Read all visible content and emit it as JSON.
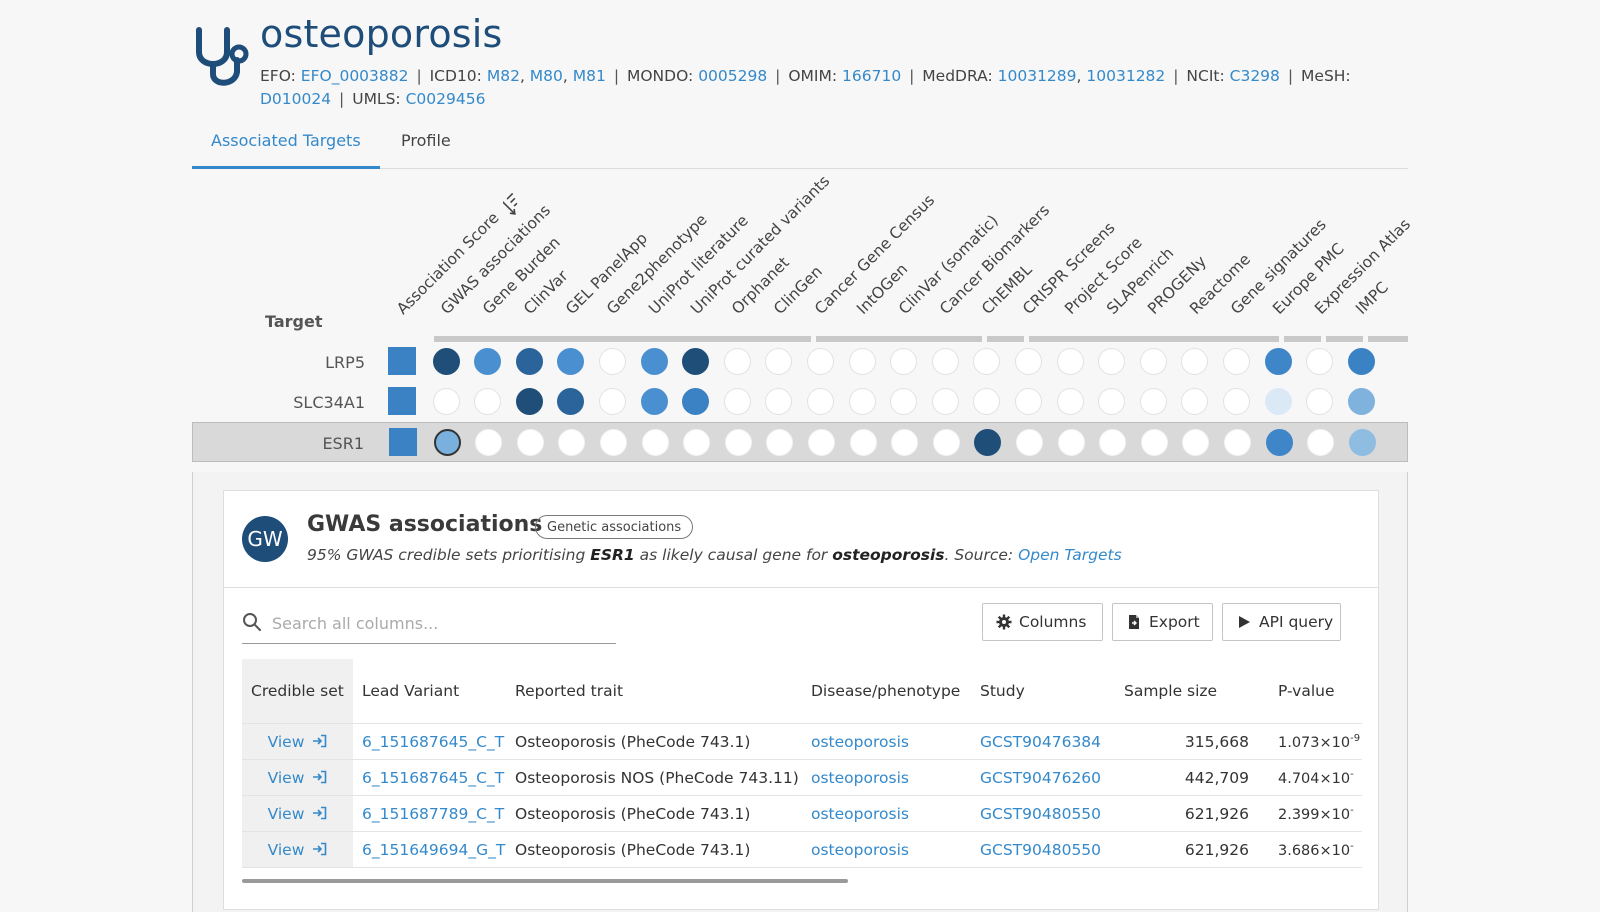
{
  "disease": {
    "title": "osteoporosis",
    "xrefs": [
      {
        "label": "EFO:",
        "ids": [
          "EFO_0003882"
        ]
      },
      {
        "label": "ICD10:",
        "ids": [
          "M82",
          "M80",
          "M81"
        ]
      },
      {
        "label": "MONDO:",
        "ids": [
          "0005298"
        ]
      },
      {
        "label": "OMIM:",
        "ids": [
          "166710"
        ]
      },
      {
        "label": "MedDRA:",
        "ids": [
          "10031289",
          "10031282"
        ]
      },
      {
        "label": "NCIt:",
        "ids": [
          "C3298"
        ]
      },
      {
        "label": "MeSH:",
        "ids": [
          "D010024"
        ]
      },
      {
        "label": "UMLS:",
        "ids": [
          "C0029456"
        ]
      }
    ],
    "icon": "stethoscope-icon"
  },
  "tabs": [
    {
      "label": "Associated Targets",
      "active": true
    },
    {
      "label": "Profile",
      "active": false
    }
  ],
  "matrix": {
    "target_heading": "Target",
    "sorted_column_icon": "sort-descending-icon",
    "columns": [
      "Association Score",
      "GWAS associations",
      "Gene Burden",
      "ClinVar",
      "GEL PanelApp",
      "Gene2phenotype",
      "UniProt literature",
      "UniProt curated variants",
      "Orphanet",
      "ClinGen",
      "Cancer Gene Census",
      "IntOGen",
      "ClinVar (somatic)",
      "Cancer Biomarkers",
      "ChEMBL",
      "CRISPR Screens",
      "Project Score",
      "SLAPenrich",
      "PROGENy",
      "Reactome",
      "Gene signatures",
      "Europe PMC",
      "Expression Atlas",
      "IMPC"
    ],
    "rows": [
      {
        "target": "LRP5",
        "score_color": "#3a82c4",
        "cells": [
          "#1f4e79",
          "#4a90d0",
          "#2a649a",
          "#4a90d0",
          "",
          "#4a90d0",
          "#1f4e79",
          "",
          "",
          "",
          "",
          "",
          "",
          "",
          "",
          "",
          "",
          "",
          "",
          "",
          "#3f86c8",
          "",
          "#3a82c4"
        ]
      },
      {
        "target": "SLC34A1",
        "score_color": "#3a82c4",
        "cells": [
          "",
          "",
          "#1f4e79",
          "#2a649a",
          "",
          "#4a90d0",
          "#3a82c4",
          "",
          "",
          "",
          "",
          "",
          "",
          "",
          "",
          "",
          "",
          "",
          "",
          "",
          "#dbe8f5",
          "",
          "#7fb2dc"
        ]
      },
      {
        "target": "ESR1",
        "score_color": "#3a82c4",
        "selected": true,
        "selected_cell": 0,
        "cells": [
          "#7ab0dd",
          "",
          "",
          "",
          "",
          "",
          "",
          "",
          "",
          "",
          "",
          "",
          "",
          "#1f4e79",
          "",
          "",
          "",
          "",
          "",
          "",
          "#3f86c8",
          "",
          "#8fbde2"
        ]
      }
    ],
    "colors": {
      "empty_cell": "#ffffff",
      "selected_row": "#d9d9d9"
    }
  },
  "detail": {
    "avatar": "GW",
    "title": "GWAS associations",
    "chip": "Genetic associations",
    "desc_prefix": "95% GWAS credible sets prioritising ",
    "desc_target": "ESR1",
    "desc_middle": " as likely causal gene for ",
    "desc_disease": "osteoporosis",
    "desc_source": ". Source: ",
    "source_link": "Open Targets",
    "search_placeholder": "Search all columns...",
    "buttons": {
      "columns": "Columns",
      "export": "Export",
      "api": "API query"
    },
    "table": {
      "headers": [
        "Credible set",
        "Lead Variant",
        "Reported trait",
        "Disease/phenotype",
        "Study",
        "Sample size",
        "P-value"
      ],
      "rows": [
        {
          "view": "View",
          "variant": "6_151687645_C_T",
          "trait": "Osteoporosis (PheCode 743.1)",
          "disease": "osteoporosis",
          "study": "GCST90476384",
          "n": "315,668",
          "p_mant": "1.073×10",
          "p_exp": "-9"
        },
        {
          "view": "View",
          "variant": "6_151687645_C_T",
          "trait": "Osteoporosis NOS (PheCode 743.11)",
          "disease": "osteoporosis",
          "study": "GCST90476260",
          "n": "442,709",
          "p_mant": "4.704×10",
          "p_exp": "-"
        },
        {
          "view": "View",
          "variant": "6_151687789_C_T",
          "trait": "Osteoporosis (PheCode 743.1)",
          "disease": "osteoporosis",
          "study": "GCST90480550",
          "n": "621,926",
          "p_mant": "2.399×10",
          "p_exp": "-"
        },
        {
          "view": "View",
          "variant": "6_151649694_G_T",
          "trait": "Osteoporosis (PheCode 743.1)",
          "disease": "osteoporosis",
          "study": "GCST90480550",
          "n": "621,926",
          "p_mant": "3.686×10",
          "p_exp": "-"
        }
      ]
    }
  }
}
